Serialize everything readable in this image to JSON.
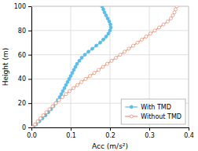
{
  "chart_data": {
    "type": "line",
    "xlabel": "Acc (m/s²)",
    "ylabel": "Height (m)",
    "xlim": [
      0,
      0.4
    ],
    "ylim": [
      0,
      100
    ],
    "xticks": [
      {
        "value": 0,
        "label": "0.0"
      },
      0.1,
      0.2,
      0.3,
      0.4
    ],
    "yticks": [
      0,
      20,
      40,
      60,
      80,
      100
    ],
    "grid": true,
    "legend": "lower right",
    "series": [
      {
        "name": "With TMD",
        "color": "#5BBDE8",
        "marker": "filled-circle",
        "x": [
          0.005,
          0.012,
          0.02,
          0.028,
          0.036,
          0.043,
          0.05,
          0.056,
          0.062,
          0.067,
          0.072,
          0.076,
          0.08,
          0.084,
          0.088,
          0.092,
          0.096,
          0.1,
          0.104,
          0.108,
          0.112,
          0.116,
          0.122,
          0.128,
          0.136,
          0.145,
          0.155,
          0.165,
          0.175,
          0.183,
          0.19,
          0.196,
          0.2,
          0.202,
          0.201,
          0.198,
          0.194,
          0.19,
          0.186,
          0.183,
          0.18
        ],
        "values": [
          0,
          2.5,
          5,
          7.5,
          10,
          12.5,
          15,
          17.5,
          20,
          22.5,
          25,
          27.5,
          30,
          32.5,
          35,
          37.5,
          40,
          42.5,
          45,
          47.5,
          50,
          52.5,
          55,
          57.5,
          60,
          62.5,
          65,
          67.5,
          70,
          72.5,
          75,
          77.5,
          80,
          82.5,
          85,
          87.5,
          90,
          92.5,
          95,
          97.5,
          100
        ]
      },
      {
        "name": "Without TMD",
        "color": "#E8957A",
        "marker": "open-circle",
        "x": [
          0.003,
          0.009,
          0.016,
          0.023,
          0.03,
          0.038,
          0.046,
          0.054,
          0.062,
          0.07,
          0.079,
          0.088,
          0.097,
          0.107,
          0.117,
          0.127,
          0.138,
          0.149,
          0.16,
          0.171,
          0.182,
          0.193,
          0.204,
          0.215,
          0.226,
          0.237,
          0.248,
          0.259,
          0.27,
          0.281,
          0.292,
          0.303,
          0.314,
          0.325,
          0.336,
          0.347,
          0.355,
          0.36,
          0.364,
          0.367,
          0.37
        ],
        "values": [
          0,
          2.5,
          5,
          7.5,
          10,
          12.5,
          15,
          17.5,
          20,
          22.5,
          25,
          27.5,
          30,
          32.5,
          35,
          37.5,
          40,
          42.5,
          45,
          47.5,
          50,
          52.5,
          55,
          57.5,
          60,
          62.5,
          65,
          67.5,
          70,
          72.5,
          75,
          77.5,
          80,
          82.5,
          85,
          87.5,
          90,
          92.5,
          95,
          97.5,
          100
        ]
      }
    ]
  }
}
